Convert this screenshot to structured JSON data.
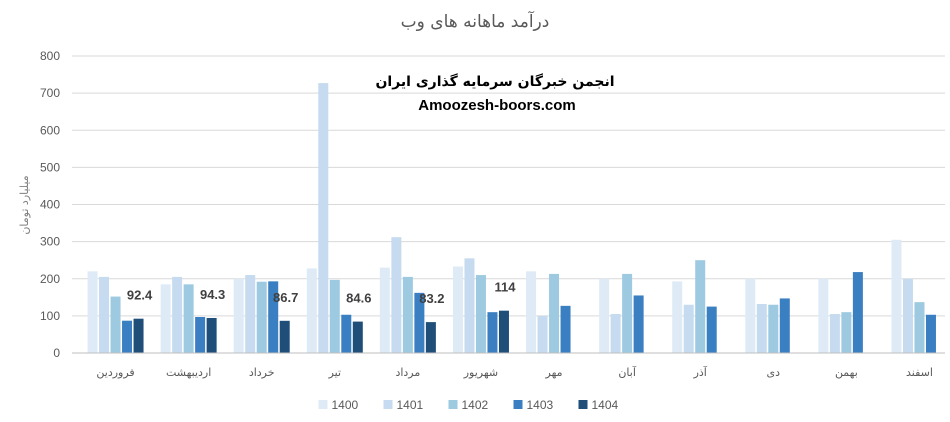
{
  "chart_data": {
    "type": "bar",
    "title": "درآمد ماهانه های وب",
    "ylabel": "میلیارد تومان",
    "ylim": [
      0,
      800
    ],
    "yticks": [
      0,
      100,
      200,
      300,
      400,
      500,
      600,
      700,
      800
    ],
    "grid": true,
    "legend_position": "bottom",
    "categories": [
      "فروردین",
      "اردیبهشت",
      "خرداد",
      "تیر",
      "مرداد",
      "شهریور",
      "مهر",
      "آبان",
      "آذر",
      "دی",
      "بهمن",
      "اسفند"
    ],
    "series": [
      {
        "name": "1400",
        "color": "#deebf7",
        "values": [
          220,
          185,
          200,
          228,
          230,
          233,
          220,
          200,
          193,
          200,
          200,
          305
        ]
      },
      {
        "name": "1401",
        "color": "#c6dbef",
        "values": [
          205,
          205,
          210,
          727,
          312,
          255,
          100,
          105,
          130,
          132,
          105,
          200
        ]
      },
      {
        "name": "1402",
        "color": "#9ecae1",
        "values": [
          152,
          185,
          192,
          197,
          205,
          210,
          213,
          213,
          250,
          130,
          110,
          137
        ]
      },
      {
        "name": "1403",
        "color": "#3a7fc1",
        "values": [
          87,
          97,
          193,
          103,
          162,
          110,
          127,
          155,
          125,
          147,
          218,
          103
        ]
      },
      {
        "name": "1404",
        "color": "#1f4e79",
        "values": [
          92.4,
          94.3,
          86.7,
          84.6,
          83.2,
          114,
          null,
          null,
          null,
          null,
          null,
          null
        ]
      }
    ],
    "data_labels": [
      "92.4",
      "94.3",
      "86.7",
      "84.6",
      "83.2",
      "114"
    ]
  },
  "watermark": {
    "line1": "انجمن خبرگان سرمایه گذاری ایران",
    "line2": "Amoozesh-boors.com"
  }
}
